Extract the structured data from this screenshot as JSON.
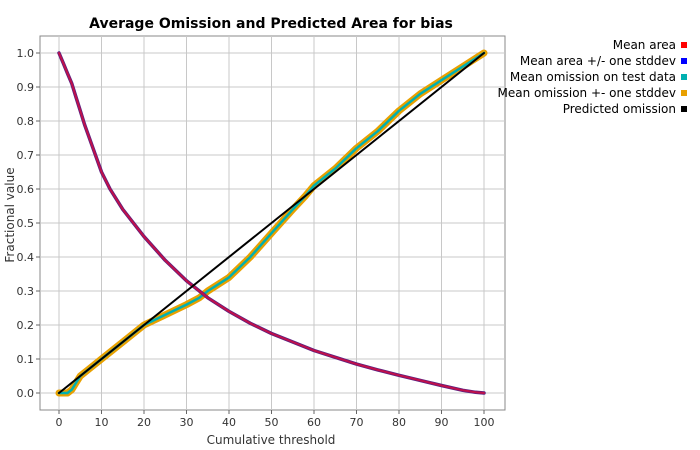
{
  "chart_data": {
    "type": "line",
    "title": "Average Omission and Predicted Area for bias",
    "xlabel": "Cumulative threshold",
    "ylabel": "Fractional value",
    "xlim": [
      0,
      100
    ],
    "ylim": [
      0,
      1
    ],
    "xticks": [
      "0",
      "10",
      "20",
      "30",
      "40",
      "50",
      "60",
      "70",
      "80",
      "90",
      "100"
    ],
    "yticks": [
      "0.0",
      "0.1",
      "0.2",
      "0.3",
      "0.4",
      "0.5",
      "0.6",
      "0.7",
      "0.8",
      "0.9",
      "1.0"
    ],
    "grid": true,
    "legend_position": "top-right",
    "series": [
      {
        "name": "Mean area",
        "color": "#ff0000",
        "x": [
          0,
          1,
          2,
          3,
          4,
          5,
          6,
          8,
          10,
          12,
          15,
          20,
          25,
          30,
          35,
          40,
          45,
          50,
          55,
          60,
          65,
          70,
          75,
          80,
          85,
          90,
          95,
          98,
          100
        ],
        "y": [
          1.0,
          0.97,
          0.94,
          0.91,
          0.87,
          0.83,
          0.79,
          0.72,
          0.65,
          0.6,
          0.54,
          0.46,
          0.39,
          0.33,
          0.28,
          0.24,
          0.205,
          0.175,
          0.15,
          0.125,
          0.105,
          0.085,
          0.068,
          0.052,
          0.037,
          0.022,
          0.008,
          0.002,
          0.0
        ]
      },
      {
        "name": "Mean area +/- one stddev",
        "color": "#0000ff",
        "x": [
          0,
          1,
          2,
          3,
          4,
          5,
          6,
          8,
          10,
          12,
          15,
          20,
          25,
          30,
          35,
          40,
          45,
          50,
          55,
          60,
          65,
          70,
          75,
          80,
          85,
          90,
          95,
          98,
          100
        ],
        "y": [
          1.0,
          0.97,
          0.94,
          0.91,
          0.87,
          0.83,
          0.79,
          0.72,
          0.65,
          0.6,
          0.54,
          0.46,
          0.39,
          0.33,
          0.28,
          0.24,
          0.205,
          0.175,
          0.15,
          0.125,
          0.105,
          0.085,
          0.068,
          0.052,
          0.037,
          0.022,
          0.008,
          0.002,
          0.0
        ]
      },
      {
        "name": "Mean omission on test data",
        "color": "#00b0b0",
        "x": [
          0,
          2,
          3,
          4,
          5,
          7,
          10,
          15,
          20,
          25,
          30,
          33,
          35,
          40,
          45,
          50,
          55,
          58,
          60,
          65,
          70,
          75,
          80,
          85,
          90,
          95,
          100
        ],
        "y": [
          0.0,
          0.0,
          0.01,
          0.03,
          0.05,
          0.07,
          0.1,
          0.15,
          0.2,
          0.23,
          0.26,
          0.28,
          0.3,
          0.34,
          0.4,
          0.47,
          0.54,
          0.58,
          0.61,
          0.66,
          0.72,
          0.77,
          0.83,
          0.88,
          0.92,
          0.96,
          1.0
        ]
      },
      {
        "name": "Mean omission +- one stddev",
        "color": "#e8a000",
        "x": [
          0,
          2,
          3,
          4,
          5,
          7,
          10,
          15,
          20,
          25,
          30,
          33,
          35,
          40,
          45,
          50,
          55,
          58,
          60,
          65,
          70,
          75,
          80,
          85,
          90,
          95,
          100
        ],
        "y": [
          0.0,
          0.0,
          0.01,
          0.03,
          0.05,
          0.07,
          0.1,
          0.15,
          0.2,
          0.23,
          0.26,
          0.28,
          0.3,
          0.34,
          0.4,
          0.47,
          0.54,
          0.58,
          0.61,
          0.66,
          0.72,
          0.77,
          0.83,
          0.88,
          0.92,
          0.96,
          1.0
        ]
      },
      {
        "name": "Predicted omission",
        "color": "#000000",
        "x": [
          0,
          100
        ],
        "y": [
          0.0,
          1.0
        ]
      }
    ]
  }
}
